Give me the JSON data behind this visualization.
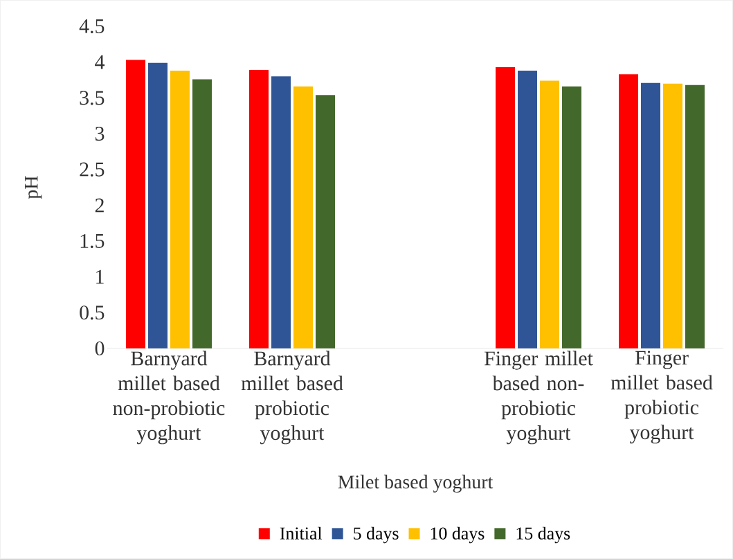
{
  "chart_data": {
    "type": "bar",
    "xlabel": "Milet based yoghurt",
    "ylabel": "pH",
    "categories": [
      "Barnyard millet based non-probiotic yoghurt",
      "Barnyard millet based probiotic yoghurt",
      null,
      "Finger millet based non-probiotic yoghurt",
      "Finger millet based probiotic yoghurt"
    ],
    "series": [
      {
        "name": "Initial",
        "color": "#ff0000",
        "values": [
          4.03,
          3.89,
          null,
          3.93,
          3.83
        ]
      },
      {
        "name": "5 days",
        "color": "#2f5597",
        "values": [
          3.99,
          3.8,
          null,
          3.88,
          3.71
        ]
      },
      {
        "name": "10 days",
        "color": "#ffc000",
        "values": [
          3.88,
          3.66,
          null,
          3.74,
          3.7
        ]
      },
      {
        "name": "15 days",
        "color": "#43682b",
        "values": [
          3.76,
          3.54,
          null,
          3.66,
          3.68
        ]
      }
    ],
    "ylim": [
      0,
      4.5
    ],
    "yticks": [
      0,
      0.5,
      1,
      1.5,
      2,
      2.5,
      3,
      3.5,
      4,
      4.5
    ],
    "legend": "bottom"
  }
}
